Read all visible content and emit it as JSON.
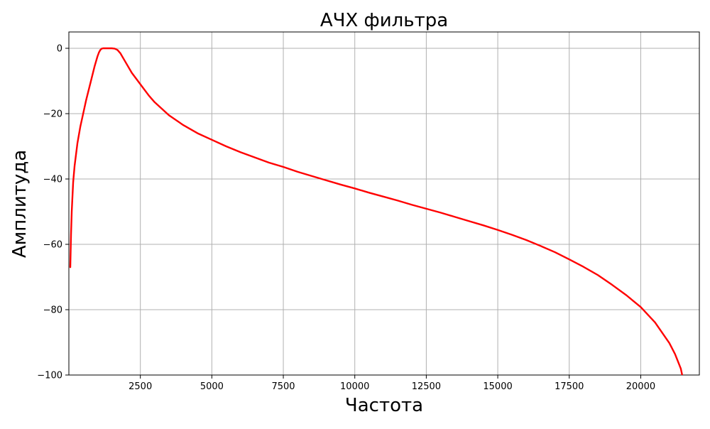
{
  "chart_data": {
    "type": "line",
    "title": "АЧХ фильтра",
    "xlabel": "Частота",
    "ylabel": "Амплитуда",
    "xlim": [
      0,
      22050
    ],
    "ylim": [
      -100,
      5
    ],
    "xticks": [
      2500,
      5000,
      7500,
      10000,
      12500,
      15000,
      17500,
      20000
    ],
    "yticks": [
      0,
      -20,
      -40,
      -60,
      -80,
      -100
    ],
    "grid": true,
    "legend": "none",
    "series": [
      {
        "color": "#ff0000",
        "x": [
          50,
          75,
          100,
          150,
          200,
          300,
          400,
          500,
          600,
          700,
          800,
          900,
          1000,
          1050,
          1100,
          1150,
          1200,
          1300,
          1400,
          1500,
          1600,
          1700,
          1800,
          1900,
          2000,
          2200,
          2500,
          2800,
          3000,
          3500,
          4000,
          4500,
          5000,
          5500,
          6000,
          6500,
          7000,
          7500,
          8000,
          8500,
          9000,
          9500,
          10000,
          10500,
          11000,
          11500,
          12000,
          12500,
          13000,
          13500,
          14000,
          14500,
          15000,
          15500,
          16000,
          16500,
          17000,
          17500,
          18000,
          18500,
          19000,
          19500,
          20000,
          20500,
          21000,
          21200,
          21400,
          21450
        ],
        "y": [
          -67,
          -57,
          -50,
          -41,
          -36,
          -29,
          -24,
          -20,
          -16,
          -12.5,
          -9,
          -5.5,
          -2.5,
          -1.3,
          -0.5,
          -0.1,
          0,
          0,
          0,
          0,
          -0.1,
          -0.5,
          -1.5,
          -3,
          -4.5,
          -7.5,
          -11,
          -14.5,
          -16.5,
          -20.5,
          -23.5,
          -26,
          -28,
          -30,
          -31.8,
          -33.4,
          -35,
          -36.3,
          -37.8,
          -39.1,
          -40.4,
          -41.7,
          -42.9,
          -44.2,
          -45.4,
          -46.6,
          -47.9,
          -49.1,
          -50.3,
          -51.6,
          -52.9,
          -54.2,
          -55.6,
          -57.1,
          -58.7,
          -60.5,
          -62.4,
          -64.6,
          -66.9,
          -69.4,
          -72.4,
          -75.6,
          -79.2,
          -83.9,
          -90.2,
          -93.6,
          -98,
          -100
        ]
      }
    ]
  }
}
